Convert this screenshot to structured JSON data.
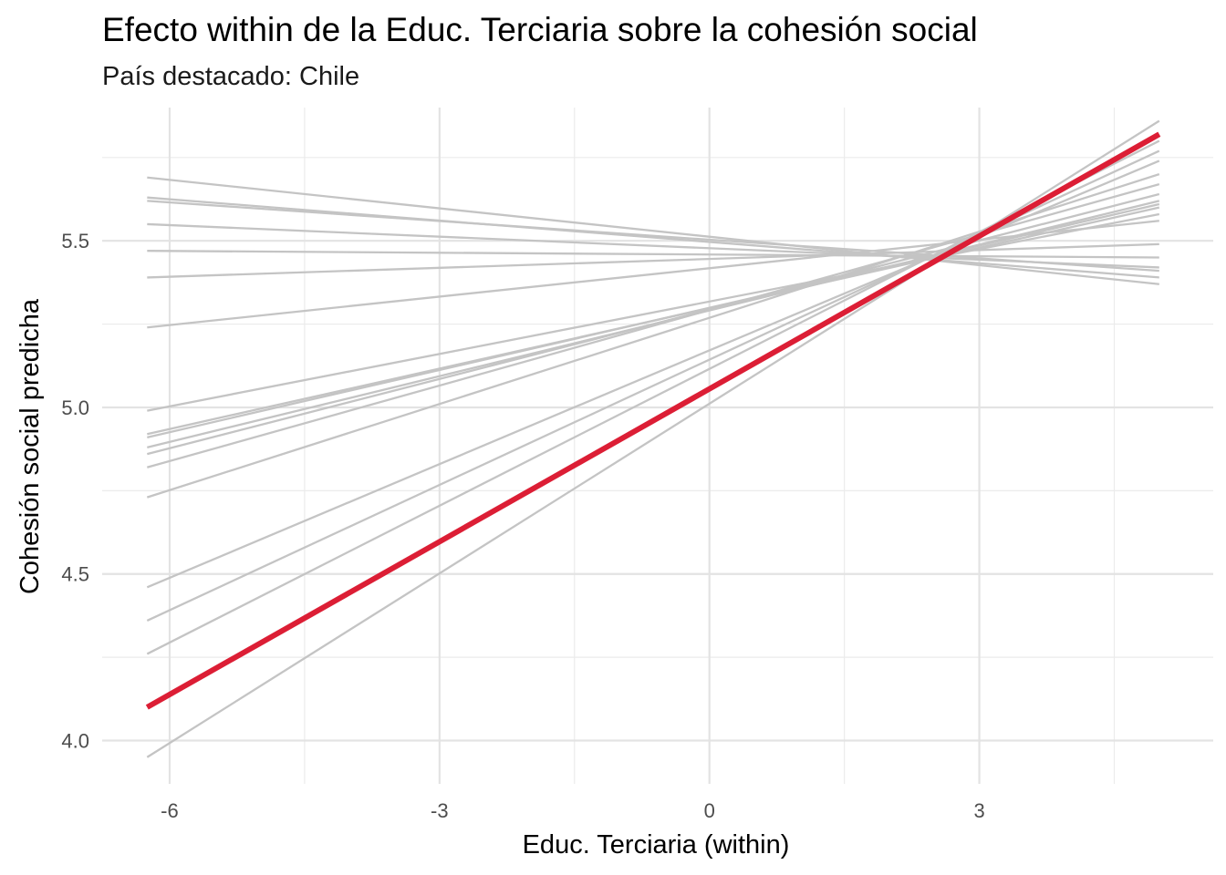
{
  "chart_data": {
    "type": "line",
    "title": "Efecto within de la Educ. Terciaria sobre la cohesión social",
    "subtitle": "País destacado: Chile",
    "xlabel": "Educ. Terciaria (within)",
    "ylabel": "Cohesión social predicha",
    "xlim": [
      -6.75,
      5.6
    ],
    "ylim": [
      3.87,
      5.9
    ],
    "x_ticks": [
      -6,
      -3,
      0,
      3
    ],
    "x_tick_labels": [
      "-6",
      "-3",
      "0",
      "3"
    ],
    "y_ticks": [
      4.0,
      4.5,
      5.0,
      5.5
    ],
    "y_tick_labels": [
      "4.0",
      "4.5",
      "5.0",
      "5.5"
    ],
    "grid": true,
    "highlight_color": "#DC1E35",
    "background_line_color": "#C4C4C4",
    "x_range": [
      -6.25,
      5.0
    ],
    "series": [
      {
        "values": [
          5.69,
          5.37
        ]
      },
      {
        "values": [
          5.63,
          5.39
        ]
      },
      {
        "values": [
          5.62,
          5.41
        ]
      },
      {
        "values": [
          5.55,
          5.42
        ]
      },
      {
        "values": [
          5.47,
          5.45
        ]
      },
      {
        "values": [
          5.39,
          5.49
        ]
      },
      {
        "values": [
          5.24,
          5.56
        ]
      },
      {
        "values": [
          4.99,
          5.58
        ]
      },
      {
        "values": [
          4.92,
          5.6
        ]
      },
      {
        "values": [
          4.91,
          5.61
        ]
      },
      {
        "values": [
          4.88,
          5.62
        ]
      },
      {
        "values": [
          4.86,
          5.64
        ]
      },
      {
        "values": [
          4.82,
          5.67
        ]
      },
      {
        "values": [
          4.73,
          5.7
        ]
      },
      {
        "values": [
          4.46,
          5.74
        ]
      },
      {
        "values": [
          4.36,
          5.77
        ]
      },
      {
        "values": [
          4.26,
          5.8
        ]
      },
      {
        "values": [
          3.95,
          5.86
        ]
      },
      {
        "name": "Chile",
        "highlight": true,
        "values": [
          4.1,
          5.82
        ]
      }
    ]
  }
}
